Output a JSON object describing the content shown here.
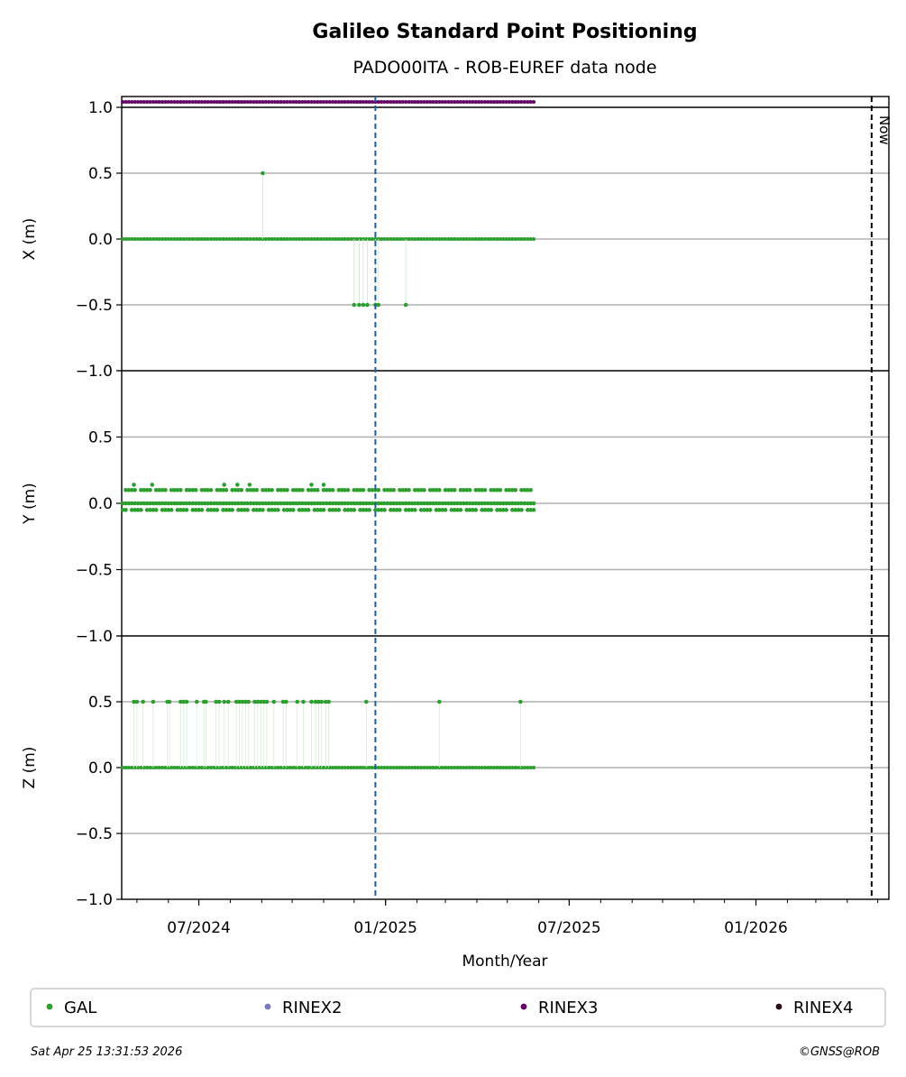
{
  "chart_data": {
    "type": "scatter",
    "title": "Galileo Standard Point Positioning",
    "subtitle": "PADO00ITA - ROB-EUREF data node",
    "xlabel": "Month/Year",
    "x_tick_labels": [
      "07/2024",
      "01/2025",
      "07/2025",
      "01/2026"
    ],
    "x_tick_dates": [
      "2024-07-01",
      "2025-01-01",
      "2025-07-01",
      "2026-01-01"
    ],
    "x_range": [
      "2024-04-16",
      "2026-05-12"
    ],
    "grid": "horizontal",
    "panels": [
      {
        "ylabel": "X (m)",
        "ylim": [
          -1.0,
          1.0
        ],
        "yticks": [
          "1.0",
          "0.5",
          "0.0",
          "−0.5",
          "−1.0"
        ],
        "series": [
          {
            "name": "GAL",
            "color": "#2ca02c",
            "baseline": {
              "from": "2024-04-17",
              "to": "2025-05-28",
              "value": 0.0
            },
            "outliers": [
              {
                "x": "2024-09-02",
                "y": 0.5
              },
              {
                "x": "2024-12-01",
                "y": -0.5
              },
              {
                "x": "2024-12-06",
                "y": -0.5
              },
              {
                "x": "2024-12-10",
                "y": -0.5
              },
              {
                "x": "2024-12-14",
                "y": -0.5
              },
              {
                "x": "2024-12-22",
                "y": -0.5
              },
              {
                "x": "2024-12-25",
                "y": -0.5
              },
              {
                "x": "2025-01-21",
                "y": -0.5
              }
            ]
          }
        ]
      },
      {
        "ylabel": "Y (m)",
        "ylim": [
          -1.0,
          1.0
        ],
        "yticks": [
          "",
          "0.5",
          "0.0",
          "−0.5",
          "−1.0"
        ],
        "series": [
          {
            "name": "GAL",
            "color": "#2ca02c",
            "levels": [
              0.1,
              0.0,
              -0.05
            ],
            "x_range": [
              "2024-04-17",
              "2025-05-28"
            ],
            "extra_points": [
              {
                "x": "2024-04-28",
                "y": 0.14
              },
              {
                "x": "2024-05-16",
                "y": 0.14
              },
              {
                "x": "2024-07-26",
                "y": 0.14
              },
              {
                "x": "2024-08-08",
                "y": 0.14
              },
              {
                "x": "2024-08-20",
                "y": 0.14
              },
              {
                "x": "2024-10-20",
                "y": 0.14
              },
              {
                "x": "2024-11-01",
                "y": 0.14
              }
            ]
          }
        ]
      },
      {
        "ylabel": "Z (m)",
        "ylim": [
          -1.0,
          1.0
        ],
        "yticks": [
          "",
          "0.5",
          "0.0",
          "−0.5",
          "−1.0"
        ],
        "series": [
          {
            "name": "GAL",
            "color": "#2ca02c",
            "baseline": {
              "from": "2024-04-17",
              "to": "2025-05-28",
              "value": 0.0
            },
            "outliers_y": 0.5,
            "outlier_dates": [
              "2024-04-28",
              "2024-05-01",
              "2024-05-07",
              "2024-05-17",
              "2024-05-31",
              "2024-06-02",
              "2024-06-13",
              "2024-06-16",
              "2024-06-19",
              "2024-06-29",
              "2024-07-06",
              "2024-07-08",
              "2024-07-18",
              "2024-07-21",
              "2024-07-26",
              "2024-07-30",
              "2024-08-07",
              "2024-08-10",
              "2024-08-13",
              "2024-08-16",
              "2024-08-19",
              "2024-08-25",
              "2024-08-28",
              "2024-08-31",
              "2024-09-03",
              "2024-09-06",
              "2024-09-13",
              "2024-09-22",
              "2024-09-25",
              "2024-10-06",
              "2024-10-12",
              "2024-10-20",
              "2024-10-24",
              "2024-10-27",
              "2024-10-30",
              "2024-11-03",
              "2024-11-06",
              "2024-12-13",
              "2025-02-23",
              "2025-05-14"
            ]
          }
        ]
      }
    ],
    "top_strip": {
      "name": "RINEX3",
      "color": "#660066",
      "from": "2024-04-17",
      "to": "2025-05-28"
    },
    "event_line": {
      "date": "2024-12-22",
      "color": "#1f5fa0"
    },
    "now_line": {
      "date": "2026-04-25",
      "label": "Now"
    },
    "legend": {
      "placement": "bottom",
      "entries": [
        {
          "name": "GAL",
          "color": "#2ca02c"
        },
        {
          "name": "RINEX2",
          "color": "#7a7ac0"
        },
        {
          "name": "RINEX3",
          "color": "#660066"
        },
        {
          "name": "RINEX4",
          "color": "#2a0a18"
        }
      ]
    }
  },
  "footer": {
    "timestamp": "Sat Apr 25 13:31:53 2026",
    "copyright": "©GNSS@ROB"
  }
}
